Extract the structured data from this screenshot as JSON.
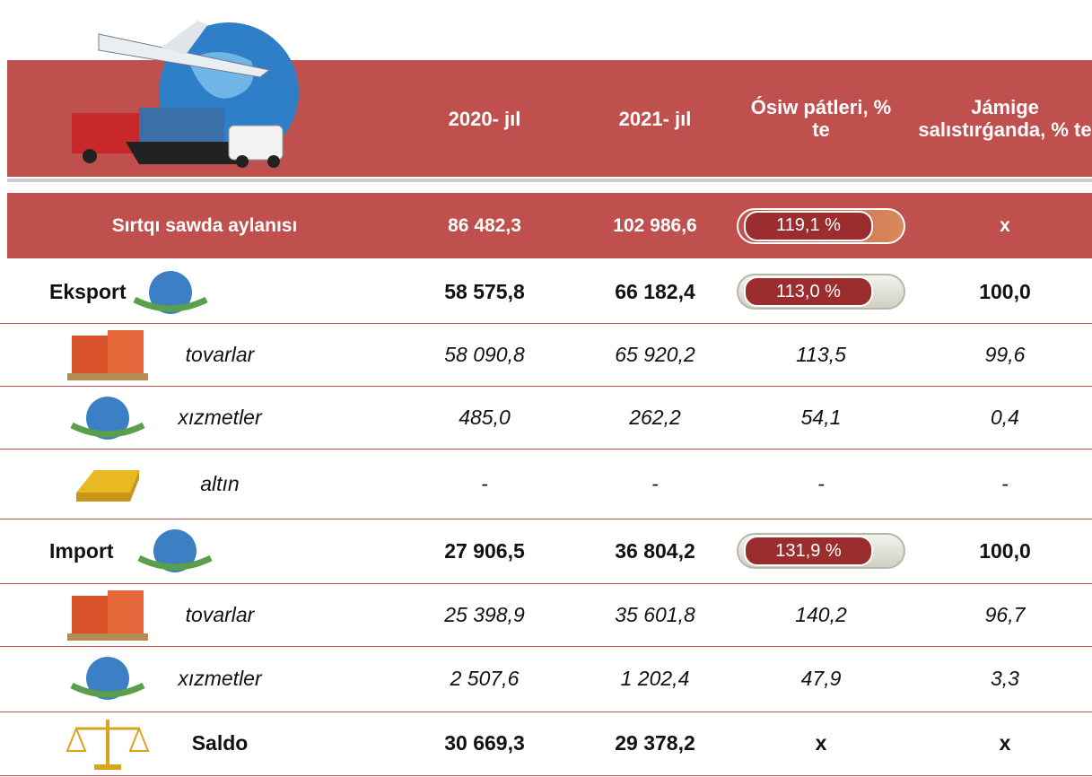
{
  "header": {
    "columns": [
      "2020- jıl",
      "2021- jıl",
      "Ósiw pátleri, % te",
      "Jámige salıstırǵanda, % te"
    ]
  },
  "table": {
    "rows": [
      {
        "label": "Sırtqı sawda aylanısı",
        "cells": [
          "86 482,3",
          "102 986,6",
          "119,1 %",
          "x"
        ]
      },
      {
        "label": "Eksport",
        "cells": [
          "58 575,8",
          "66 182,4",
          "113,0 %",
          "100,0"
        ]
      },
      {
        "label": "tovarlar",
        "cells": [
          "58 090,8",
          "65 920,2",
          "113,5",
          "99,6"
        ]
      },
      {
        "label": "xızmetler",
        "cells": [
          "485,0",
          "262,2",
          "54,1",
          "0,4"
        ]
      },
      {
        "label": "altın",
        "cells": [
          "-",
          "-",
          "-",
          "-"
        ]
      },
      {
        "label": "Import",
        "cells": [
          "27 906,5",
          "36 804,2",
          "131,9 %",
          "100,0"
        ]
      },
      {
        "label": "tovarlar",
        "cells": [
          "25 398,9",
          "35 601,8",
          "140,2",
          "96,7"
        ]
      },
      {
        "label": "xızmetler",
        "cells": [
          "2 507,6",
          "1 202,4",
          "47,9",
          "3,3"
        ]
      },
      {
        "label": "Saldo",
        "cells": [
          "30 669,3",
          "29 378,2",
          "x",
          "x"
        ]
      }
    ]
  }
}
